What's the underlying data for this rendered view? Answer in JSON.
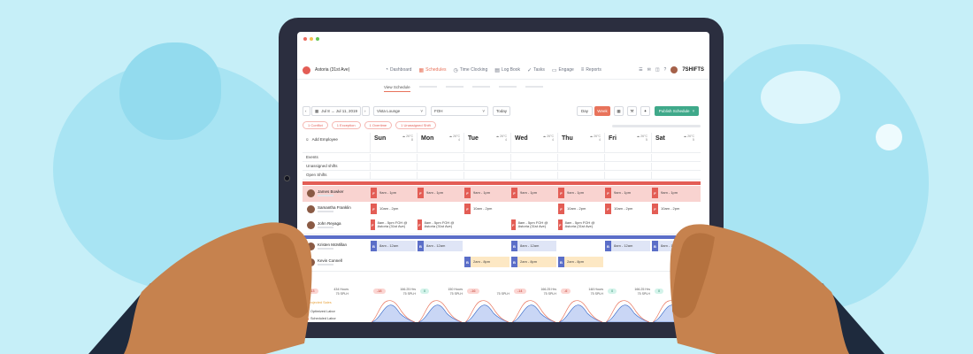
{
  "colors": {
    "background": "#c6eff8",
    "blob": "#a8e4f3",
    "tablet": "#2b2e3f",
    "accent": "#e8735b",
    "fohRed": "#e35d55",
    "fohPink": "#f9d3d0",
    "bohBlue": "#5b6ec8",
    "bohLight": "#dfe5f6",
    "publish": "#3fa98a",
    "optimized": "#2e63c7",
    "scheduled": "#e8735b",
    "skin": "#c6824e",
    "sleeve": "#1e2a3d"
  },
  "window_dots": [
    "#ec6a5e",
    "#f4bf4f",
    "#61c554"
  ],
  "topnav": {
    "location": "Astoria (31st Ave)",
    "items": [
      {
        "label": "Dashboard",
        "icon": "◔"
      },
      {
        "label": "Schedules",
        "icon": "▦",
        "active": true
      },
      {
        "label": "Time Clocking",
        "icon": "◷"
      },
      {
        "label": "Log Book",
        "icon": "▤"
      },
      {
        "label": "Tasks",
        "icon": "✓"
      },
      {
        "label": "Engage",
        "icon": "▭"
      },
      {
        "label": "Reports",
        "icon": "≡"
      }
    ],
    "brand": "7SHIFTS"
  },
  "subtabs": {
    "active": "View Schedule"
  },
  "toolbar": {
    "date_range": "Jul 8  →  Jul 11, 2019",
    "location_select": "Vista Lounge",
    "department_select": "FOH",
    "today": "Today",
    "day": "Day",
    "week": "Week",
    "publish": "Publish Schedule"
  },
  "alerts": [
    "1 Conflict",
    "1 Exception",
    "1 Overtime",
    "1 Unassigned Shift"
  ],
  "grid": {
    "add_employee": "Add Employee",
    "rows": [
      "Events",
      "Unassigned shifts",
      "Open Shifts"
    ],
    "days": [
      {
        "name": "Sun",
        "temp": "26°C",
        "count": "8"
      },
      {
        "name": "Mon",
        "temp": "26°C",
        "count": "4"
      },
      {
        "name": "Tue",
        "temp": "26°C",
        "count": "4"
      },
      {
        "name": "Wed",
        "temp": "26°C",
        "count": "4"
      },
      {
        "name": "Thu",
        "temp": "26°C",
        "count": "4"
      },
      {
        "name": "Fri",
        "temp": "26°C",
        "count": "5"
      },
      {
        "name": "Sat",
        "temp": "26°C",
        "count": "5"
      }
    ],
    "employees": [
      {
        "name": "James Bowker",
        "dept": "F",
        "shifts": [
          "9am - 1pm",
          "9am - 1pm",
          "9am - 1pm",
          "9am - 1pm",
          "9am - 1pm",
          "9am - 1pm",
          "9am - 1pm"
        ],
        "style": "pink"
      },
      {
        "name": "Samantha Franklin",
        "dept": "F",
        "shifts": [
          "10am - 2pm",
          "",
          "10am - 2pm",
          "",
          "10am - 2pm",
          "10am - 2pm",
          "10am - 2pm"
        ],
        "style": "white"
      },
      {
        "name": "John Reyaga",
        "dept": "F",
        "shifts": [
          "8am - 5pm FOH @ Astoria (31st Ave)",
          "8am - 5pm FOH @ Astoria (31st Ave)",
          "",
          "8am - 5pm FOH @ Astoria (31st Ave)",
          "8am - 5pm FOH @ Astoria (31st Ave)",
          "",
          ""
        ],
        "style": "white"
      },
      {
        "name": "Kristen McMillan",
        "dept": "B",
        "shifts": [
          "8am - 12am",
          "8am - 12am",
          "",
          "8am - 12am",
          "",
          "8am - 12am",
          "8am - 12am"
        ],
        "style": "blue"
      },
      {
        "name": "Kevin Connell",
        "dept": "B",
        "shifts": [
          "",
          "",
          "2am - 8pm",
          "2am - 8pm",
          "2am - 8pm",
          "",
          ""
        ],
        "style": "yellow"
      }
    ],
    "stats": [
      {
        "pill": "-13",
        "tone": "red",
        "hours": "434 Hours",
        "splh": "75 SPLH"
      },
      {
        "pill": "-18",
        "tone": "red",
        "hours": "166.25 Hrs",
        "splh": "75 SPLH"
      },
      {
        "pill": "0",
        "tone": "green",
        "hours": "150 Hours",
        "splh": "75 SPLH"
      },
      {
        "pill": "-16",
        "tone": "red",
        "hours": "",
        "splh": "75 SPLH"
      },
      {
        "pill": "-14",
        "tone": "red",
        "hours": "166.25 Hrs",
        "splh": "75 SPLH"
      },
      {
        "pill": "-6",
        "tone": "red",
        "hours": "148 Hours",
        "splh": "75 SPLH"
      },
      {
        "pill": "0",
        "tone": "green",
        "hours": "166.25 Hrs",
        "splh": "75 SPLH"
      },
      {
        "pill": "0",
        "tone": "green",
        "hours": "166.25 Hrs",
        "splh": "75 SPLH"
      }
    ],
    "projected_sales": "Projected Sales",
    "legend": [
      {
        "label": "Optimized Labor",
        "color": "#2e63c7"
      },
      {
        "label": "Scheduled Labor",
        "color": "#e8735b"
      }
    ]
  }
}
